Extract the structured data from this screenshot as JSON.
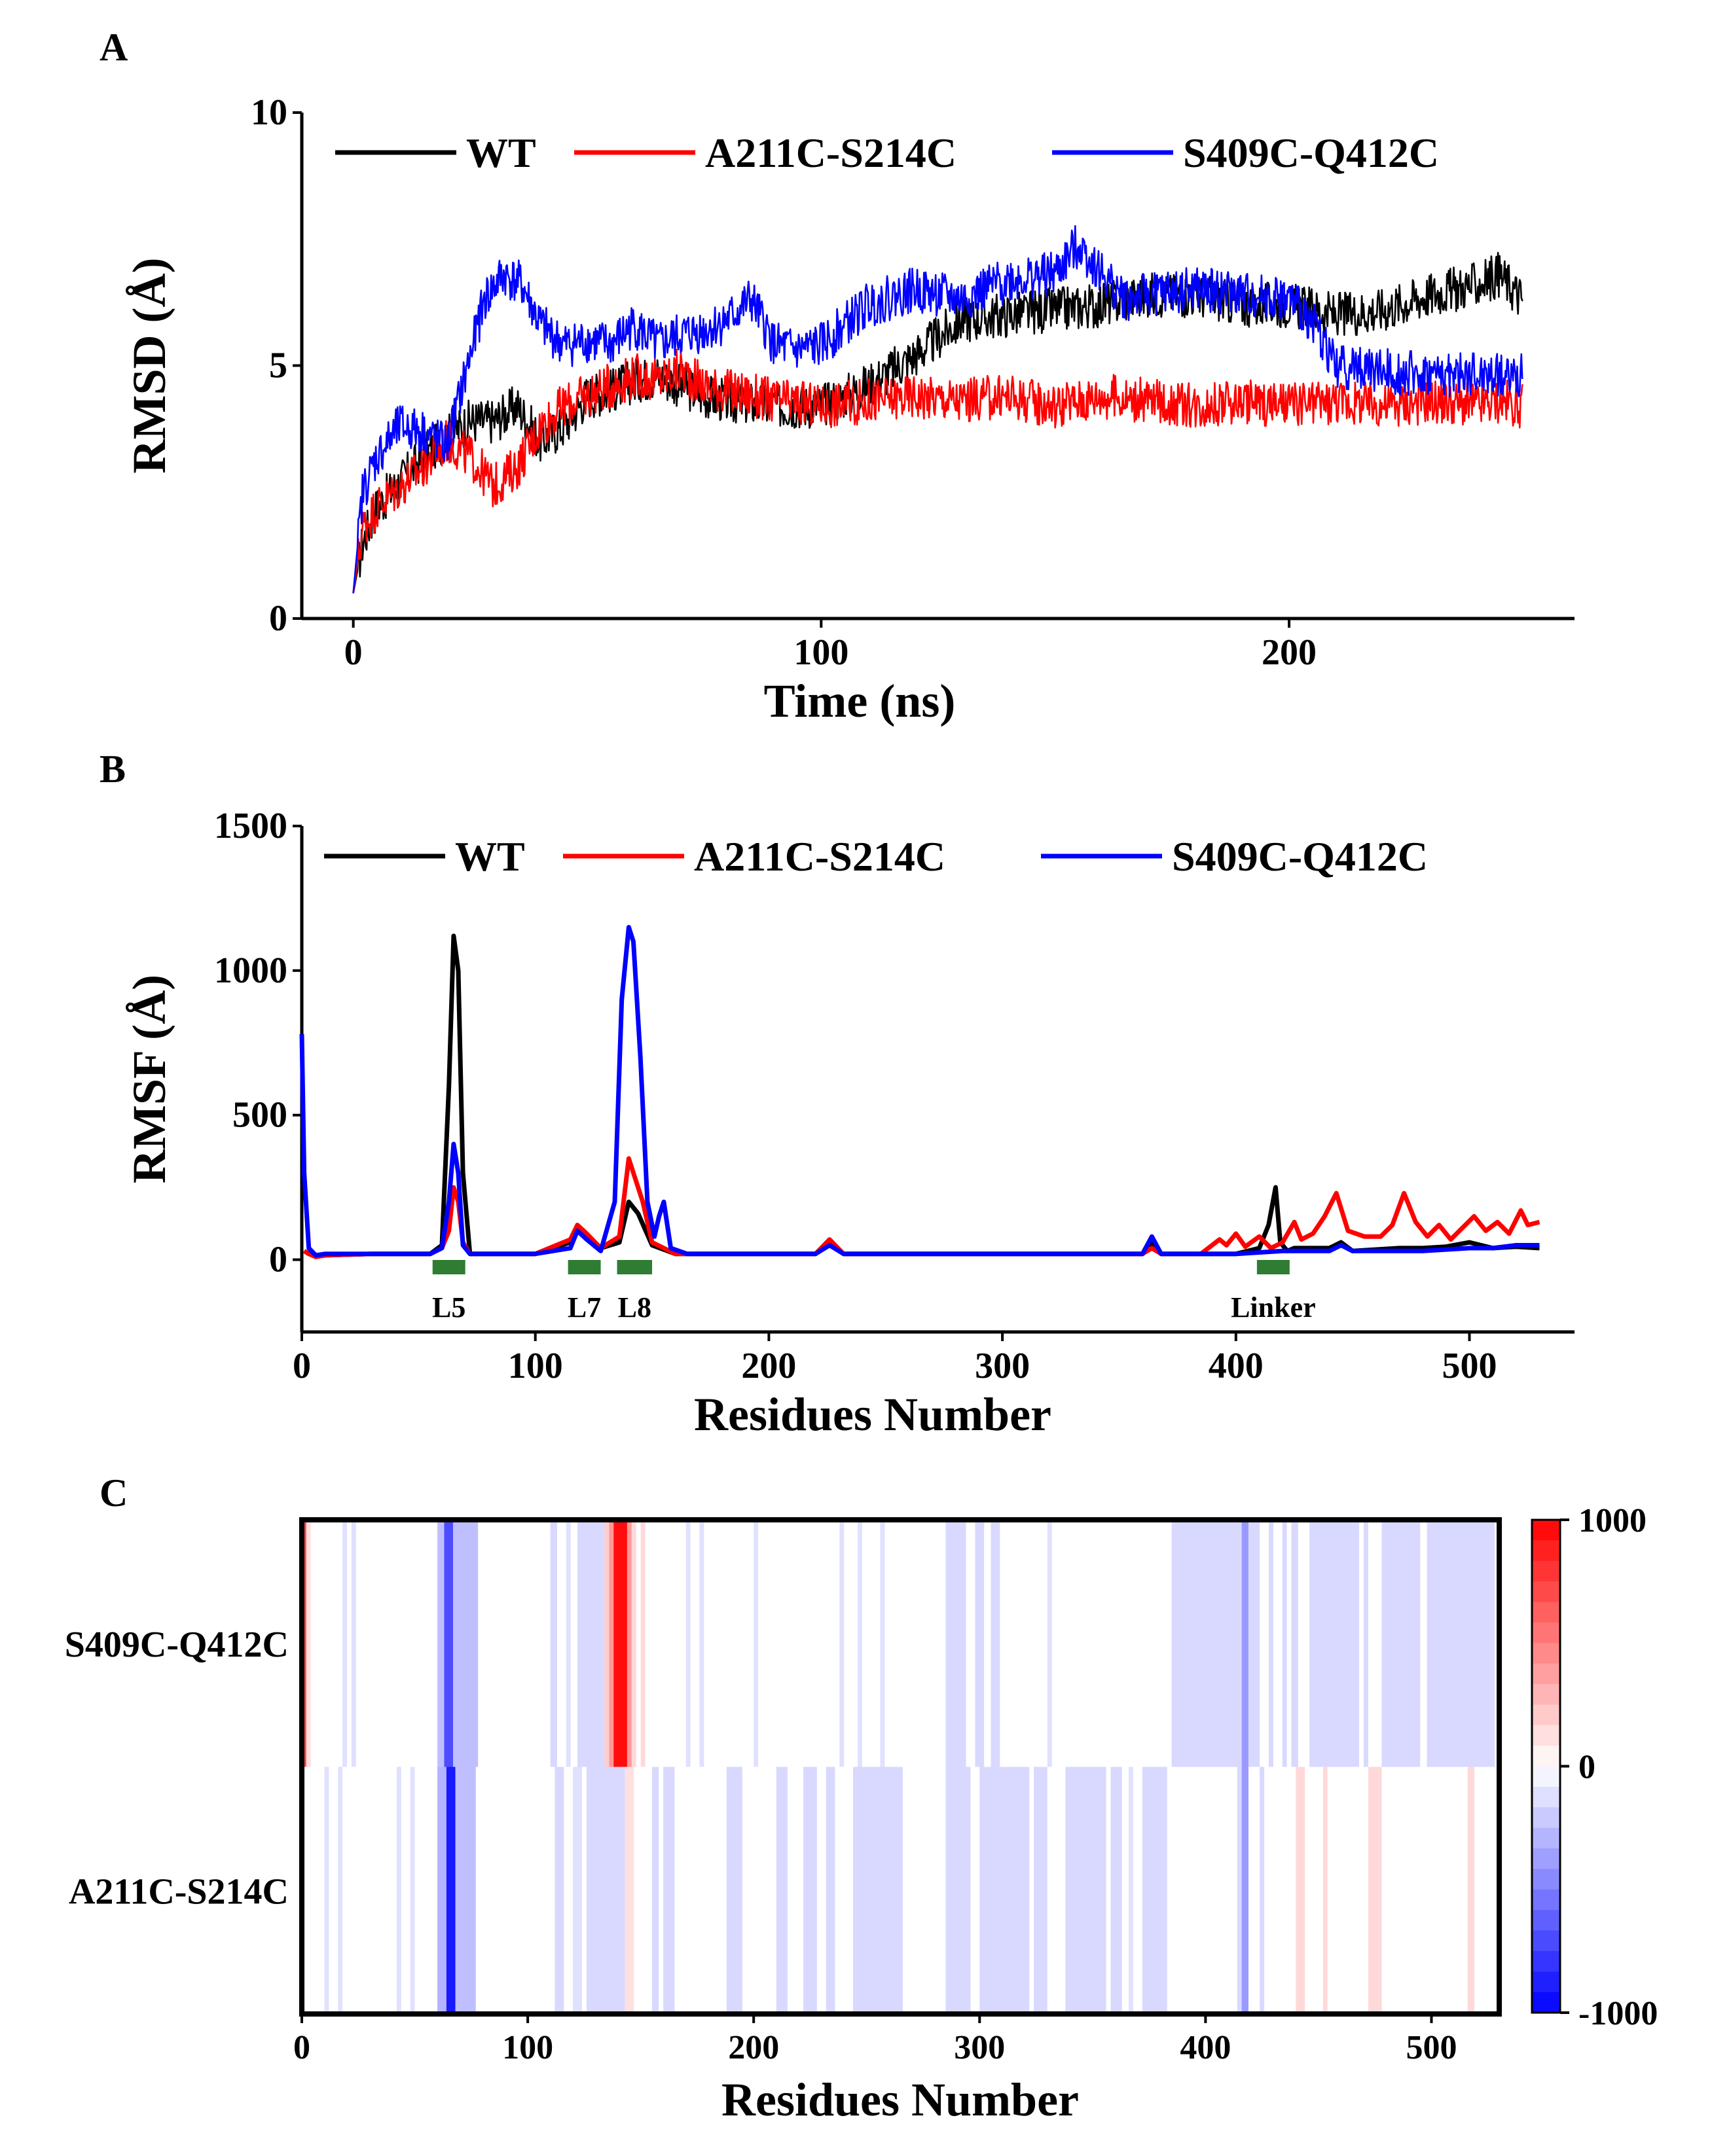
{
  "chart_data": [
    {
      "panel": "A",
      "type": "line",
      "xlabel": "Time (ns)",
      "ylabel": "RMSD (Å)",
      "xlim": [
        -11,
        261
      ],
      "ylim": [
        0,
        10
      ],
      "xticks": [
        "0",
        "100",
        "200"
      ],
      "xtick_values": [
        0,
        100,
        200
      ],
      "yticks": [
        "0",
        "5",
        "10"
      ],
      "ytick_values": [
        0,
        5,
        10
      ],
      "legend": [
        "WT",
        "A211C-S214C",
        "S409C-Q412C"
      ],
      "legend_placement": "top",
      "series": [
        {
          "name": "WT",
          "color": "#000000",
          "x": [
            0,
            2,
            5,
            10,
            15,
            20,
            25,
            30,
            35,
            40,
            45,
            50,
            55,
            60,
            65,
            70,
            75,
            80,
            90,
            100,
            110,
            120,
            130,
            140,
            150,
            160,
            170,
            180,
            190,
            200,
            210,
            220,
            230,
            240,
            245,
            250
          ],
          "y": [
            0.5,
            1.5,
            2.2,
            2.7,
            3.2,
            3.6,
            3.9,
            3.9,
            4.2,
            3.5,
            3.8,
            4.4,
            4.5,
            4.7,
            4.8,
            4.6,
            4.4,
            4.3,
            4.2,
            4.2,
            4.6,
            5.2,
            5.9,
            6.0,
            6.1,
            6.2,
            6.4,
            6.4,
            6.2,
            6.2,
            6.0,
            6.1,
            6.4,
            6.6,
            6.8,
            6.3
          ]
        },
        {
          "name": "A211C-S214C",
          "color": "#ff0000",
          "x": [
            0,
            2,
            5,
            10,
            15,
            20,
            25,
            30,
            35,
            40,
            45,
            50,
            55,
            60,
            65,
            70,
            75,
            80,
            90,
            100,
            110,
            120,
            130,
            140,
            150,
            160,
            170,
            180,
            190,
            200,
            210,
            220,
            230,
            240,
            245,
            250
          ],
          "y": [
            0.5,
            1.8,
            2.2,
            2.6,
            3.0,
            3.5,
            3.2,
            2.6,
            3.0,
            3.8,
            4.2,
            4.4,
            4.6,
            4.8,
            4.7,
            4.9,
            4.6,
            4.5,
            4.3,
            4.2,
            4.3,
            4.4,
            4.3,
            4.4,
            4.2,
            4.4,
            4.3,
            4.2,
            4.3,
            4.2,
            4.3,
            4.2,
            4.3,
            4.2,
            4.3,
            4.2
          ]
        },
        {
          "name": "S409C-Q412C",
          "color": "#0000ff",
          "x": [
            0,
            2,
            5,
            10,
            15,
            20,
            25,
            28,
            32,
            36,
            40,
            45,
            50,
            55,
            60,
            65,
            70,
            75,
            80,
            85,
            90,
            95,
            100,
            110,
            120,
            130,
            140,
            150,
            155,
            160,
            165,
            170,
            180,
            190,
            200,
            205,
            210,
            220,
            230,
            240,
            250
          ],
          "y": [
            0.5,
            2.5,
            3.2,
            3.8,
            3.7,
            3.4,
            5.2,
            6.3,
            6.8,
            6.6,
            5.8,
            5.4,
            5.5,
            5.4,
            5.8,
            5.4,
            5.6,
            5.7,
            5.9,
            6.3,
            5.4,
            5.3,
            5.4,
            6.2,
            6.5,
            6.3,
            6.7,
            6.8,
            7.4,
            6.8,
            6.3,
            6.4,
            6.5,
            6.4,
            6.3,
            5.9,
            5.0,
            4.9,
            4.8,
            4.8,
            4.8
          ]
        }
      ]
    },
    {
      "panel": "B",
      "type": "line",
      "xlabel": "Residues Number",
      "ylabel": "RMSF (Å)",
      "xlim": [
        0,
        545
      ],
      "ylim": [
        -250,
        1500
      ],
      "xticks": [
        "0",
        "100",
        "200",
        "300",
        "400",
        "500"
      ],
      "xtick_values": [
        0,
        100,
        200,
        300,
        400,
        500
      ],
      "yticks": [
        "0",
        "500",
        "1000",
        "1500"
      ],
      "ytick_values": [
        0,
        500,
        1000,
        1500
      ],
      "legend": [
        "WT",
        "A211C-S214C",
        "S409C-Q412C"
      ],
      "legend_placement": "top",
      "annotations": [
        {
          "label": "L5",
          "range": [
            56,
            70
          ]
        },
        {
          "label": "L7",
          "range": [
            114,
            128
          ]
        },
        {
          "label": "L8",
          "range": [
            135,
            150
          ]
        },
        {
          "label": "Linker",
          "range": [
            409,
            423
          ]
        }
      ],
      "annotation_color": "#2e7d32",
      "series": [
        {
          "name": "WT",
          "color": "#000000",
          "x": [
            1,
            3,
            6,
            10,
            30,
            55,
            60,
            63,
            65,
            67,
            69,
            72,
            100,
            115,
            118,
            122,
            128,
            136,
            140,
            144,
            150,
            160,
            220,
            226,
            232,
            300,
            360,
            364,
            368,
            400,
            410,
            414,
            417,
            419,
            422,
            425,
            440,
            445,
            450,
            470,
            480,
            490,
            500,
            510,
            520,
            530
          ],
          "y": [
            30,
            20,
            10,
            15,
            20,
            20,
            50,
            600,
            1120,
            1000,
            300,
            20,
            20,
            60,
            110,
            80,
            40,
            60,
            200,
            160,
            50,
            20,
            20,
            60,
            20,
            20,
            20,
            55,
            20,
            20,
            40,
            120,
            250,
            60,
            30,
            40,
            40,
            60,
            30,
            40,
            40,
            45,
            60,
            40,
            45,
            40
          ]
        },
        {
          "name": "A211C-S214C",
          "color": "#ff0000",
          "x": [
            1,
            3,
            6,
            10,
            30,
            55,
            60,
            63,
            65,
            67,
            69,
            72,
            100,
            115,
            118,
            122,
            128,
            136,
            140,
            142,
            146,
            150,
            160,
            220,
            226,
            232,
            300,
            360,
            364,
            368,
            385,
            393,
            396,
            400,
            404,
            410,
            415,
            420,
            425,
            428,
            433,
            438,
            443,
            448,
            455,
            462,
            467,
            472,
            477,
            482,
            487,
            492,
            497,
            502,
            507,
            512,
            517,
            522,
            525,
            530
          ],
          "y": [
            30,
            20,
            10,
            15,
            20,
            20,
            40,
            100,
            250,
            200,
            60,
            20,
            20,
            70,
            120,
            90,
            40,
            80,
            350,
            300,
            200,
            60,
            20,
            20,
            70,
            20,
            20,
            20,
            40,
            20,
            20,
            70,
            50,
            90,
            45,
            80,
            40,
            60,
            130,
            70,
            90,
            150,
            230,
            100,
            80,
            80,
            120,
            230,
            130,
            80,
            120,
            70,
            110,
            150,
            100,
            130,
            90,
            170,
            120,
            130
          ]
        },
        {
          "name": "S409C-Q412C",
          "color": "#0000ff",
          "x": [
            0,
            1,
            3,
            6,
            10,
            30,
            55,
            60,
            63,
            65,
            67,
            69,
            72,
            100,
            115,
            118,
            122,
            128,
            134,
            137,
            140,
            142,
            145,
            148,
            151,
            153,
            155,
            158,
            165,
            220,
            226,
            232,
            300,
            360,
            364,
            368,
            400,
            410,
            420,
            440,
            445,
            450,
            480,
            500,
            510,
            520,
            530
          ],
          "y": [
            780,
            300,
            40,
            15,
            20,
            20,
            20,
            40,
            200,
            400,
            300,
            50,
            20,
            20,
            40,
            100,
            70,
            30,
            200,
            900,
            1150,
            1100,
            700,
            200,
            80,
            150,
            200,
            40,
            20,
            20,
            50,
            20,
            20,
            20,
            80,
            20,
            20,
            25,
            30,
            30,
            50,
            30,
            30,
            40,
            40,
            50,
            50
          ]
        }
      ]
    },
    {
      "panel": "C",
      "type": "heatmap",
      "xlabel": "Residues Number",
      "xlim": [
        0,
        530
      ],
      "xticks": [
        "0",
        "100",
        "200",
        "300",
        "400",
        "500"
      ],
      "xtick_values": [
        0,
        100,
        200,
        300,
        400,
        500
      ],
      "rows": [
        "S409C-Q412C",
        "A211C-S214C"
      ],
      "colorbar_ticks": [
        "1000",
        "0",
        "-1000"
      ],
      "colorbar_values": [
        1000,
        0,
        -1000
      ],
      "colorbar_min_color": "#0000ff",
      "colorbar_max_color": "#ff0000",
      "cells": [
        [
          {
            "start": 0,
            "end": 2,
            "value": 700
          },
          {
            "start": 2,
            "end": 4,
            "value": 120
          },
          {
            "start": 18,
            "end": 20,
            "value": -120
          },
          {
            "start": 22,
            "end": 24,
            "value": -120
          },
          {
            "start": 60,
            "end": 63,
            "value": -250
          },
          {
            "start": 63,
            "end": 67,
            "value": -700
          },
          {
            "start": 67,
            "end": 78,
            "value": -250
          },
          {
            "start": 110,
            "end": 113,
            "value": -150
          },
          {
            "start": 117,
            "end": 119,
            "value": -120
          },
          {
            "start": 122,
            "end": 134,
            "value": -150
          },
          {
            "start": 134,
            "end": 136,
            "value": 200
          },
          {
            "start": 136,
            "end": 138,
            "value": 400
          },
          {
            "start": 138,
            "end": 144,
            "value": 950
          },
          {
            "start": 144,
            "end": 146,
            "value": 400
          },
          {
            "start": 146,
            "end": 148,
            "value": 150
          },
          {
            "start": 150,
            "end": 152,
            "value": 150
          },
          {
            "start": 170,
            "end": 172,
            "value": -120
          },
          {
            "start": 176,
            "end": 178,
            "value": -120
          },
          {
            "start": 200,
            "end": 202,
            "value": -120
          },
          {
            "start": 238,
            "end": 240,
            "value": -120
          },
          {
            "start": 246,
            "end": 248,
            "value": -120
          },
          {
            "start": 256,
            "end": 258,
            "value": -120
          },
          {
            "start": 285,
            "end": 294,
            "value": -150
          },
          {
            "start": 298,
            "end": 302,
            "value": -150
          },
          {
            "start": 305,
            "end": 309,
            "value": -150
          },
          {
            "start": 330,
            "end": 332,
            "value": -120
          },
          {
            "start": 385,
            "end": 416,
            "value": -150
          },
          {
            "start": 416,
            "end": 419,
            "value": -400
          },
          {
            "start": 419,
            "end": 424,
            "value": -150
          },
          {
            "start": 428,
            "end": 430,
            "value": -150
          },
          {
            "start": 434,
            "end": 436,
            "value": -150
          },
          {
            "start": 438,
            "end": 441,
            "value": -150
          },
          {
            "start": 446,
            "end": 468,
            "value": -150
          },
          {
            "start": 470,
            "end": 472,
            "value": -150
          },
          {
            "start": 478,
            "end": 495,
            "value": -150
          },
          {
            "start": 498,
            "end": 528,
            "value": -150
          }
        ],
        [
          {
            "start": 10,
            "end": 12,
            "value": -120
          },
          {
            "start": 16,
            "end": 18,
            "value": -120
          },
          {
            "start": 42,
            "end": 44,
            "value": -120
          },
          {
            "start": 48,
            "end": 50,
            "value": -120
          },
          {
            "start": 60,
            "end": 64,
            "value": -300
          },
          {
            "start": 64,
            "end": 68,
            "value": -900
          },
          {
            "start": 68,
            "end": 77,
            "value": -250
          },
          {
            "start": 112,
            "end": 116,
            "value": -150
          },
          {
            "start": 120,
            "end": 124,
            "value": -120
          },
          {
            "start": 126,
            "end": 143,
            "value": -150
          },
          {
            "start": 143,
            "end": 147,
            "value": 120
          },
          {
            "start": 155,
            "end": 158,
            "value": -150
          },
          {
            "start": 160,
            "end": 165,
            "value": -150
          },
          {
            "start": 188,
            "end": 195,
            "value": -150
          },
          {
            "start": 210,
            "end": 215,
            "value": -150
          },
          {
            "start": 222,
            "end": 228,
            "value": -150
          },
          {
            "start": 232,
            "end": 236,
            "value": -150
          },
          {
            "start": 244,
            "end": 266,
            "value": -150
          },
          {
            "start": 285,
            "end": 296,
            "value": -150
          },
          {
            "start": 300,
            "end": 322,
            "value": -150
          },
          {
            "start": 324,
            "end": 330,
            "value": -150
          },
          {
            "start": 338,
            "end": 356,
            "value": -150
          },
          {
            "start": 358,
            "end": 363,
            "value": -150
          },
          {
            "start": 366,
            "end": 368,
            "value": -120
          },
          {
            "start": 372,
            "end": 383,
            "value": -150
          },
          {
            "start": 414,
            "end": 416,
            "value": -150
          },
          {
            "start": 416,
            "end": 419,
            "value": -400
          },
          {
            "start": 424,
            "end": 426,
            "value": -150
          },
          {
            "start": 440,
            "end": 444,
            "value": 150
          },
          {
            "start": 452,
            "end": 454,
            "value": 150
          },
          {
            "start": 472,
            "end": 478,
            "value": 150
          },
          {
            "start": 516,
            "end": 519,
            "value": 150
          }
        ]
      ]
    }
  ]
}
